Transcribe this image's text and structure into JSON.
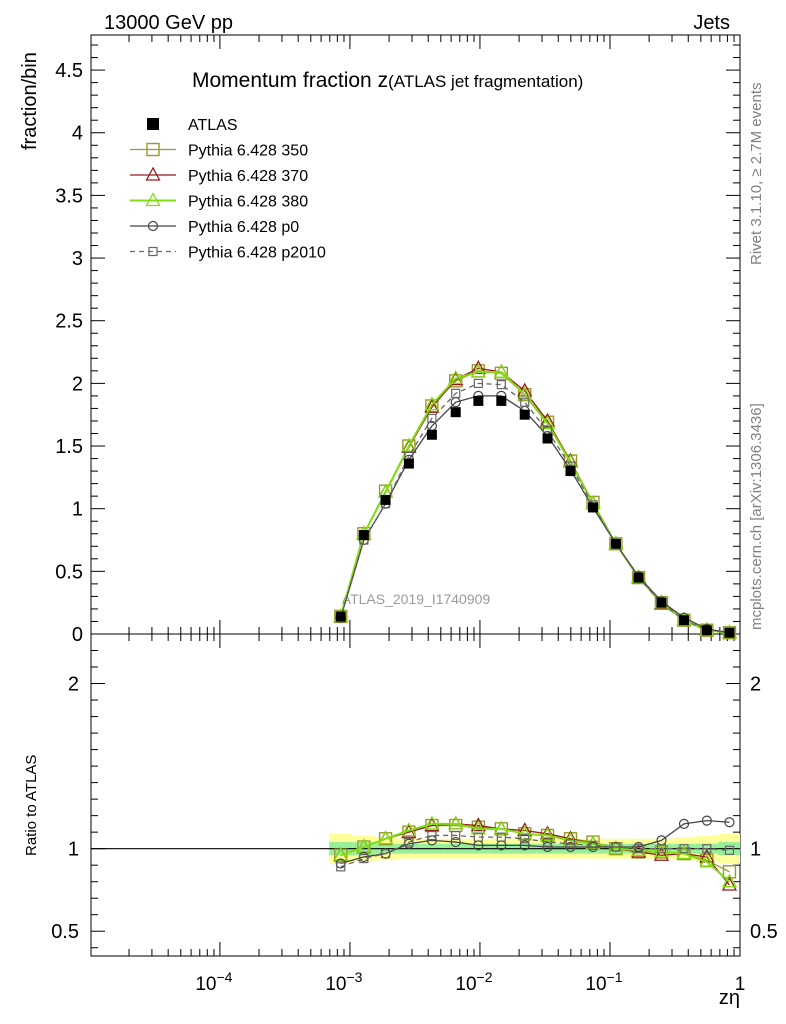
{
  "header": {
    "energy": "13000 GeV pp",
    "process": "Jets",
    "side_top": "Rivet 3.1.10, ≥ 2.7M events",
    "side_bottom": "mcplots.cern.ch [arXiv:1306.3436]",
    "watermark": "ATLAS_2019_I1740909"
  },
  "title": {
    "main": "Momentum fraction z",
    "sub": "(ATLAS jet fragmentation)"
  },
  "chart_data": [
    {
      "type": "line",
      "name": "main",
      "xscale": "log",
      "xlim": [
        1.02e-05,
        1.0
      ],
      "ylim": [
        0,
        4.78
      ],
      "ylabel": "fraction/bin",
      "yticks": [
        0,
        0.5,
        1,
        1.5,
        2,
        2.5,
        3,
        3.5,
        4,
        4.5
      ],
      "ytick_labels": [
        "0",
        "0.5",
        "1",
        "1.5",
        "2",
        "2.5",
        "3",
        "3.5",
        "4",
        "4.5"
      ],
      "legend_placement": "top-left",
      "x": [
        0.00085,
        0.00128,
        0.00188,
        0.00284,
        0.00427,
        0.00651,
        0.00972,
        0.0146,
        0.0221,
        0.0331,
        0.0497,
        0.074,
        0.111,
        0.166,
        0.249,
        0.371,
        0.556,
        0.83
      ],
      "series": [
        {
          "name": "ATLAS",
          "style": "data",
          "color": "#000000",
          "values": [
            0.14,
            0.79,
            1.07,
            1.36,
            1.59,
            1.77,
            1.86,
            1.86,
            1.75,
            1.56,
            1.3,
            1.01,
            0.72,
            0.45,
            0.25,
            0.11,
            0.03,
            0.01
          ]
        },
        {
          "name": "Pythia 6.428 350",
          "style": "square-open-large",
          "color": "#9a9a2a",
          "values": [
            0.14,
            0.8,
            1.14,
            1.5,
            1.82,
            2.02,
            2.1,
            2.08,
            1.91,
            1.69,
            1.38,
            1.05,
            0.72,
            0.45,
            0.25,
            0.11,
            0.03,
            0.01
          ]
        },
        {
          "name": "Pythia 6.428 370",
          "style": "triangle-open",
          "color": "#9a1a1a",
          "values": [
            0.14,
            0.8,
            1.13,
            1.49,
            1.81,
            2.03,
            2.12,
            2.09,
            1.94,
            1.7,
            1.38,
            1.04,
            0.72,
            0.45,
            0.24,
            0.11,
            0.03,
            0.01
          ]
        },
        {
          "name": "Pythia 6.428 380",
          "style": "triangle-open",
          "color": "#80dd10",
          "values": [
            0.14,
            0.8,
            1.13,
            1.5,
            1.83,
            2.04,
            2.09,
            2.09,
            1.91,
            1.68,
            1.37,
            1.04,
            0.72,
            0.45,
            0.25,
            0.11,
            0.03,
            0.01
          ]
        },
        {
          "name": "Pythia 6.428 p0",
          "style": "circle-open",
          "color": "#444444",
          "values": [
            0.13,
            0.75,
            1.04,
            1.39,
            1.66,
            1.85,
            1.9,
            1.9,
            1.78,
            1.58,
            1.31,
            1.01,
            0.72,
            0.46,
            0.26,
            0.13,
            0.04,
            0.01
          ]
        },
        {
          "name": "Pythia 6.428 p2010",
          "style": "square-open-dashed",
          "color": "#666666",
          "values": [
            0.13,
            0.75,
            1.04,
            1.42,
            1.72,
            1.92,
            2.0,
            1.99,
            1.85,
            1.62,
            1.34,
            1.03,
            0.72,
            0.45,
            0.25,
            0.11,
            0.03,
            0.01
          ]
        }
      ]
    },
    {
      "type": "line",
      "name": "ratio",
      "xscale": "log",
      "xlim": [
        1.02e-05,
        1.0
      ],
      "ylim": [
        0.35,
        2.3
      ],
      "ylabel": "Ratio to ATLAS",
      "xlabel": "zη",
      "yticks": [
        0.5,
        1,
        2
      ],
      "ytick_labels": [
        "0.5",
        "1",
        "2"
      ],
      "xticks": [
        0.0001,
        0.001,
        0.01,
        0.1,
        1
      ],
      "xtick_labels": [
        "10−4",
        "10−3",
        "10−2",
        "10−1",
        "1"
      ],
      "band_inner": [
        0.04,
        0.04,
        0.03,
        0.03,
        0.03,
        0.03,
        0.03,
        0.03,
        0.03,
        0.03,
        0.03,
        0.03,
        0.03,
        0.03,
        0.03,
        0.03,
        0.03,
        0.04
      ],
      "band_outer": [
        0.09,
        0.08,
        0.07,
        0.06,
        0.06,
        0.06,
        0.06,
        0.06,
        0.06,
        0.06,
        0.06,
        0.06,
        0.06,
        0.06,
        0.06,
        0.07,
        0.08,
        0.09
      ],
      "series": [
        {
          "name": "Pythia 6.428 350",
          "style": "square-open-large",
          "color": "#9a9a2a",
          "values": [
            0.96,
            1.01,
            1.06,
            1.1,
            1.14,
            1.14,
            1.13,
            1.12,
            1.09,
            1.08,
            1.06,
            1.04,
            1.0,
            0.98,
            0.98,
            0.97,
            0.93,
            0.86
          ]
        },
        {
          "name": "Pythia 6.428 370",
          "style": "triangle-open",
          "color": "#9a1a1a",
          "values": [
            0.96,
            1.01,
            1.06,
            1.1,
            1.14,
            1.15,
            1.14,
            1.12,
            1.11,
            1.09,
            1.06,
            1.03,
            1.0,
            0.98,
            0.96,
            0.97,
            0.95,
            0.78
          ]
        },
        {
          "name": "Pythia 6.428 380",
          "style": "triangle-open",
          "color": "#80dd10",
          "values": [
            0.96,
            1.01,
            1.06,
            1.11,
            1.15,
            1.15,
            1.12,
            1.12,
            1.09,
            1.08,
            1.05,
            1.03,
            1.0,
            0.99,
            0.98,
            0.97,
            0.92,
            0.8
          ]
        },
        {
          "name": "Pythia 6.428 p0",
          "style": "circle-open",
          "color": "#444444",
          "values": [
            0.91,
            0.95,
            0.97,
            1.03,
            1.05,
            1.04,
            1.02,
            1.02,
            1.02,
            1.01,
            1.01,
            1.01,
            1.01,
            1.01,
            1.05,
            1.15,
            1.17,
            1.16
          ]
        },
        {
          "name": "Pythia 6.428 p2010",
          "style": "square-open-dashed",
          "color": "#666666",
          "values": [
            0.89,
            0.94,
            0.97,
            1.04,
            1.08,
            1.08,
            1.07,
            1.07,
            1.06,
            1.04,
            1.03,
            1.02,
            1.01,
            1.0,
            1.0,
            1.0,
            1.0,
            0.99
          ]
        }
      ]
    }
  ]
}
